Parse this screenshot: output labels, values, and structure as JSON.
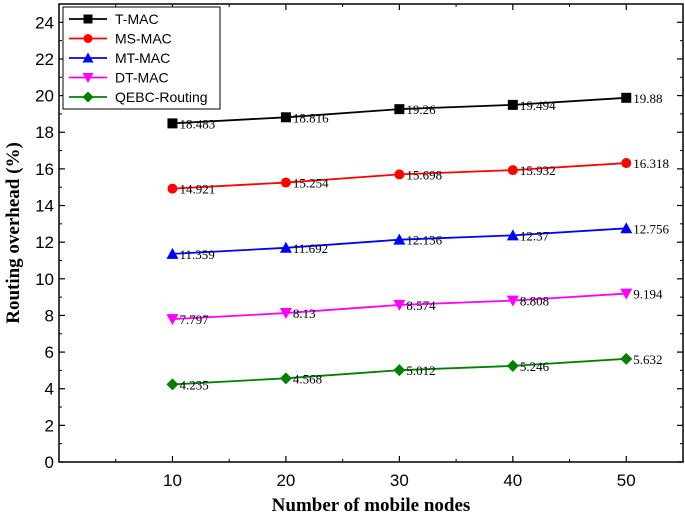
{
  "chart_data": {
    "type": "line",
    "title": "",
    "xlabel": "Number of mobile nodes",
    "ylabel": "Routing overhead (%)",
    "x": [
      10,
      20,
      30,
      40,
      50
    ],
    "xlim": [
      0,
      55
    ],
    "ylim": [
      0,
      25
    ],
    "xticks": [
      10,
      20,
      30,
      40,
      50
    ],
    "yticks": [
      0,
      2,
      4,
      6,
      8,
      10,
      12,
      14,
      16,
      18,
      20,
      22,
      24
    ],
    "legend_position": "top-left",
    "grid": false,
    "series": [
      {
        "name": "T-MAC",
        "color": "#000000",
        "marker": "square",
        "values": [
          18.483,
          18.816,
          19.26,
          19.494,
          19.88
        ],
        "labels": [
          "18.483",
          "18.816",
          "19.26",
          "19.494",
          "19.88"
        ]
      },
      {
        "name": "MS-MAC",
        "color": "#ff0000",
        "marker": "circle",
        "values": [
          14.921,
          15.254,
          15.698,
          15.932,
          16.318
        ],
        "labels": [
          "14.921",
          "15.254",
          "15.698",
          "15.932",
          "16.318"
        ]
      },
      {
        "name": "MT-MAC",
        "color": "#0000ff",
        "marker": "triangle-up",
        "values": [
          11.359,
          11.692,
          12.136,
          12.37,
          12.756
        ],
        "labels": [
          "11.359",
          "11.692",
          "12.136",
          "12.37",
          "12.756"
        ]
      },
      {
        "name": "DT-MAC",
        "color": "#ff00ff",
        "marker": "triangle-down",
        "values": [
          7.797,
          8.13,
          8.574,
          8.808,
          9.194
        ],
        "labels": [
          "7.797",
          "8.13",
          "8.574",
          "8.808",
          "9.194"
        ]
      },
      {
        "name": "QEBC-Routing",
        "color": "#008000",
        "marker": "diamond",
        "values": [
          4.235,
          4.568,
          5.012,
          5.246,
          5.632
        ],
        "labels": [
          "4.235",
          "4.568",
          "5.012",
          "5.246",
          "5.632"
        ]
      }
    ]
  }
}
